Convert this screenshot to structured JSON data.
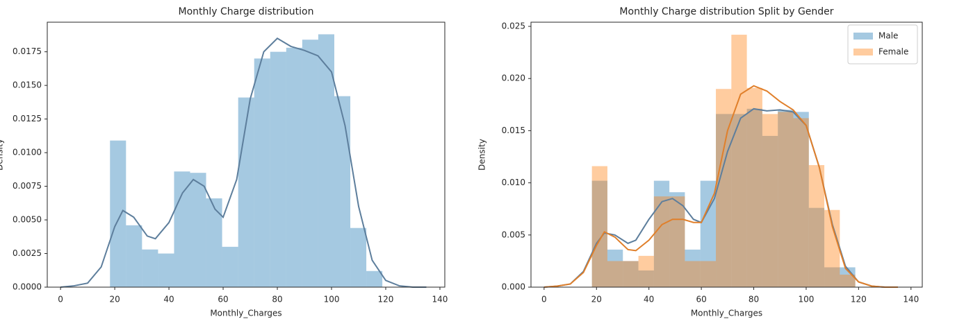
{
  "chart_data": [
    {
      "type": "histogram",
      "title": "Monthly Charge distribution",
      "xlabel": "Monthly_Charges",
      "ylabel": "Density",
      "bins": [
        18.25,
        24.16,
        30.07,
        35.99,
        41.9,
        47.81,
        53.72,
        59.63,
        65.55,
        71.46,
        77.37,
        83.28,
        89.19,
        95.1,
        101.02,
        106.93,
        112.84,
        118.75
      ],
      "kde_x": [
        0,
        5,
        10,
        15,
        20,
        23,
        27,
        32,
        35,
        40,
        45,
        49,
        53,
        57,
        60,
        65,
        70,
        75,
        80,
        85,
        90,
        95,
        100,
        105,
        110,
        115,
        120,
        125,
        130,
        135
      ],
      "series": [
        {
          "color": "#1f77b4",
          "kde_color": "#5d7e9c",
          "values": [
            0.0109,
            0.0046,
            0.0028,
            0.0025,
            0.0086,
            0.0085,
            0.0066,
            0.003,
            0.0141,
            0.017,
            0.0175,
            0.0178,
            0.0184,
            0.0188,
            0.0142,
            0.0044,
            0.0012
          ],
          "kde": [
            0,
            0.0001,
            0.0003,
            0.0015,
            0.0045,
            0.0057,
            0.0052,
            0.0038,
            0.0036,
            0.0048,
            0.007,
            0.008,
            0.0075,
            0.0058,
            0.0052,
            0.008,
            0.014,
            0.0175,
            0.0185,
            0.0179,
            0.0176,
            0.0172,
            0.016,
            0.012,
            0.006,
            0.002,
            0.0005,
            0.0001,
            0,
            0
          ]
        }
      ],
      "xlim": [
        -4.9,
        141.8
      ],
      "xticks": [
        0,
        20,
        40,
        60,
        80,
        100,
        120,
        140
      ],
      "ylim": [
        0,
        0.0197
      ],
      "yticks": [
        {
          "value": 0,
          "label": "0.0000"
        },
        {
          "value": 0.0025,
          "label": "0.0025"
        },
        {
          "value": 0.005,
          "label": "0.0050"
        },
        {
          "value": 0.0075,
          "label": "0.0075"
        },
        {
          "value": 0.01,
          "label": "0.0100"
        },
        {
          "value": 0.0125,
          "label": "0.0125"
        },
        {
          "value": 0.015,
          "label": "0.0150"
        },
        {
          "value": 0.0175,
          "label": "0.0175"
        }
      ]
    },
    {
      "type": "histogram",
      "title": "Monthly Charge distribution Split by Gender",
      "xlabel": "Monthly_Charges",
      "ylabel": "Density",
      "bins": [
        18.25,
        24.16,
        30.07,
        35.99,
        41.9,
        47.81,
        53.72,
        59.63,
        65.55,
        71.46,
        77.37,
        83.28,
        89.19,
        95.1,
        101.02,
        106.93,
        112.84,
        118.75
      ],
      "kde_x": [
        0,
        5,
        10,
        15,
        20,
        23,
        27,
        32,
        35,
        40,
        45,
        49,
        53,
        57,
        60,
        65,
        70,
        75,
        80,
        85,
        90,
        95,
        100,
        105,
        110,
        115,
        120,
        125,
        130,
        135
      ],
      "series": [
        {
          "name": "Male",
          "color": "#1f77b4",
          "kde_color": "#5d7e9c",
          "values": [
            0.0102,
            0.0036,
            0.0025,
            0.0016,
            0.0102,
            0.0091,
            0.0036,
            0.0102,
            0.0166,
            0.0166,
            0.0171,
            0.0145,
            0.017,
            0.0168,
            0.0076,
            0.0019,
            0.0019
          ],
          "kde": [
            0,
            0.0001,
            0.0003,
            0.0015,
            0.0042,
            0.0052,
            0.005,
            0.0042,
            0.0045,
            0.0065,
            0.0082,
            0.0085,
            0.0078,
            0.0065,
            0.0062,
            0.0085,
            0.013,
            0.0162,
            0.0171,
            0.0169,
            0.017,
            0.0168,
            0.0155,
            0.0115,
            0.006,
            0.002,
            0.0005,
            0.0001,
            0,
            0
          ]
        },
        {
          "name": "Female",
          "color": "#ff7f0e",
          "kde_color": "#e07f2a",
          "values": [
            0.0116,
            0.0025,
            0.0025,
            0.003,
            0.0087,
            0.0087,
            0.0025,
            0.0025,
            0.019,
            0.0242,
            0.0191,
            0.0166,
            0.0168,
            0.0162,
            0.0117,
            0.0074,
            0.0012
          ],
          "kde": [
            0,
            0.0001,
            0.0003,
            0.0014,
            0.004,
            0.0053,
            0.0048,
            0.0036,
            0.0035,
            0.0045,
            0.006,
            0.0065,
            0.0065,
            0.0062,
            0.0062,
            0.009,
            0.015,
            0.0185,
            0.0193,
            0.0188,
            0.0178,
            0.017,
            0.0155,
            0.0115,
            0.0058,
            0.0018,
            0.0005,
            0.0001,
            0,
            0
          ]
        }
      ],
      "legend": "upper right",
      "xlim": [
        -5.0,
        144.3
      ],
      "xticks": [
        0,
        20,
        40,
        60,
        80,
        100,
        120,
        140
      ],
      "ylim": [
        0,
        0.0254
      ],
      "yticks": [
        {
          "value": 0,
          "label": "0.000"
        },
        {
          "value": 0.005,
          "label": "0.005"
        },
        {
          "value": 0.01,
          "label": "0.010"
        },
        {
          "value": 0.015,
          "label": "0.015"
        },
        {
          "value": 0.02,
          "label": "0.020"
        },
        {
          "value": 0.025,
          "label": "0.025"
        }
      ]
    }
  ]
}
